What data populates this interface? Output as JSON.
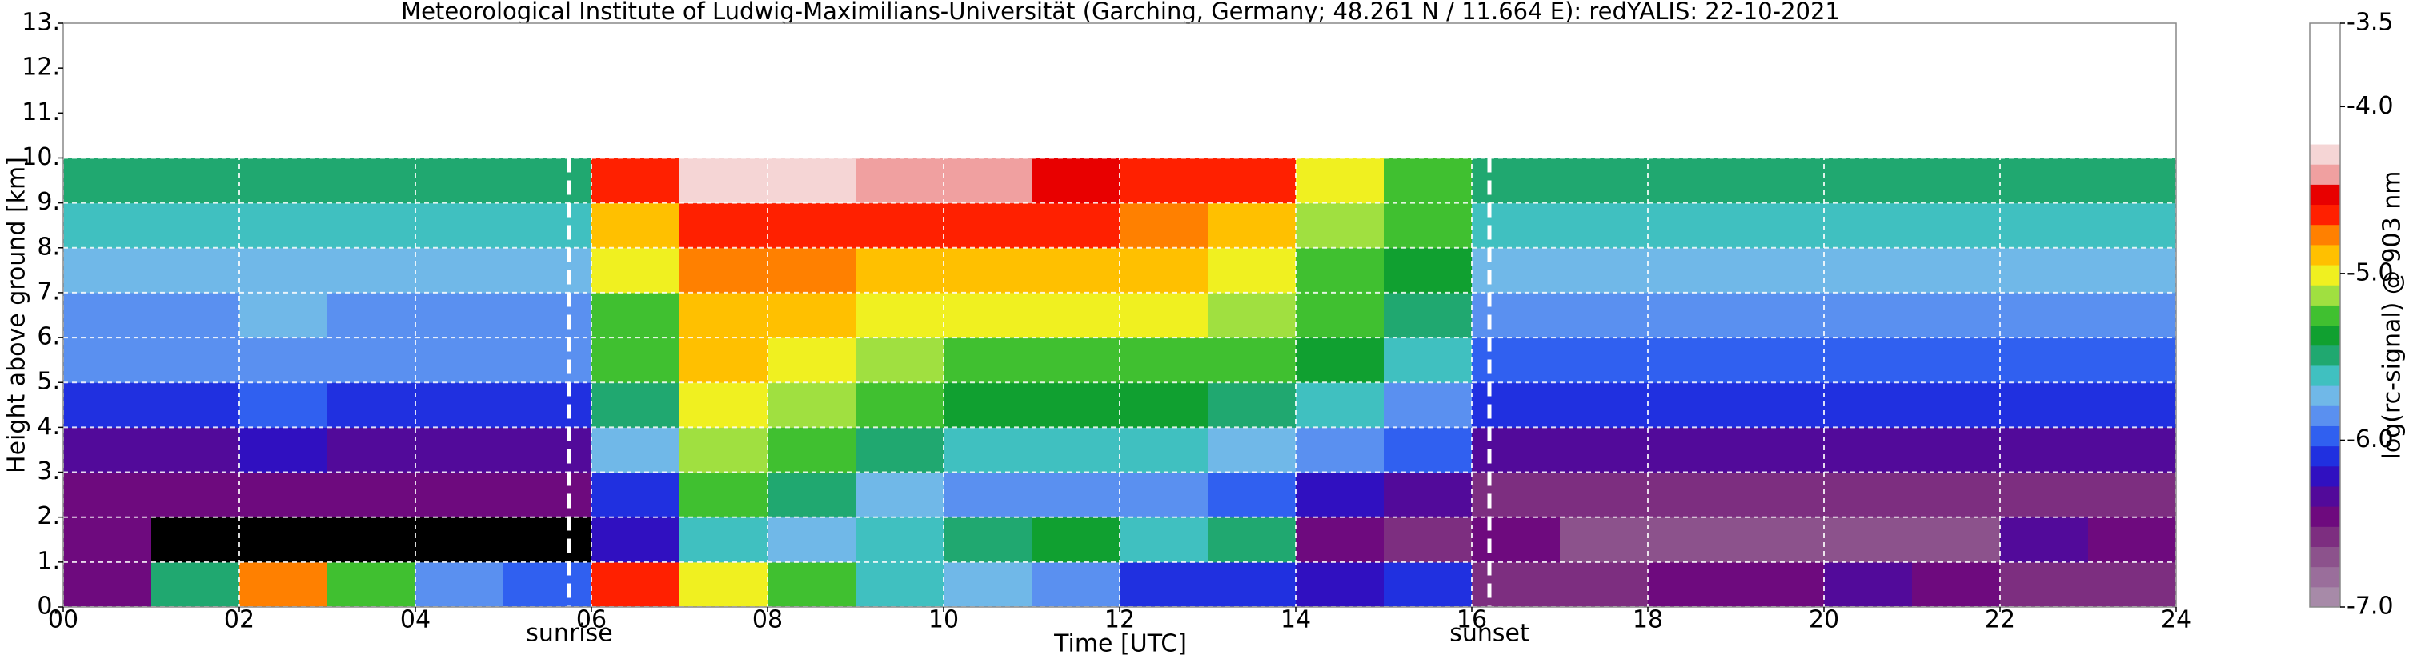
{
  "chart_data": {
    "type": "heatmap",
    "title": "Meteorological Institute of Ludwig-Maximilians-Universität (Garching, Germany; 48.261 N / 11.664 E):    redYALIS: 22-10-2021",
    "xlabel": "Time [UTC]",
    "ylabel": "Height above ground [km]",
    "colorbar_label": "log(rc-signal) @ 903 nm",
    "xlim": [
      0,
      24
    ],
    "ylim": [
      0,
      13
    ],
    "xticks": [
      {
        "value": 0,
        "label": "00"
      },
      {
        "value": 2,
        "label": "02"
      },
      {
        "value": 4,
        "label": "04"
      },
      {
        "value": 6,
        "label": "06"
      },
      {
        "value": 8,
        "label": "08"
      },
      10,
      12,
      14,
      16,
      18,
      20,
      22,
      24
    ],
    "yticks": [
      {
        "value": 0,
        "label": "0."
      },
      {
        "value": 1,
        "label": "1."
      },
      {
        "value": 2,
        "label": "2."
      },
      {
        "value": 3,
        "label": "3."
      },
      {
        "value": 4,
        "label": "4."
      },
      {
        "value": 5,
        "label": "5."
      },
      {
        "value": 6,
        "label": "6."
      },
      {
        "value": 7,
        "label": "7."
      },
      {
        "value": 8,
        "label": "8."
      },
      {
        "value": 9,
        "label": "9."
      },
      {
        "value": 10,
        "label": "10."
      },
      {
        "value": 11,
        "label": "11."
      },
      {
        "value": 12,
        "label": "12."
      },
      {
        "value": 13,
        "label": "13."
      }
    ],
    "grid": true,
    "zlim": [
      -7,
      -3.5
    ],
    "zticks": [
      -3.5,
      {
        "value": -4,
        "label": "-4.0"
      },
      {
        "value": -5,
        "label": "-5.0"
      },
      {
        "value": -6,
        "label": "-6.0"
      },
      {
        "value": -7,
        "label": "-7.0"
      }
    ],
    "colors": [
      "#a78aa8",
      "#9a6e9b",
      "#8c528c",
      "#7d2e80",
      "#6e0a7e",
      "#520a9a",
      "#3010c0",
      "#2030e0",
      "#3060f0",
      "#5a90f0",
      "#70b8e8",
      "#40c0c0",
      "#20a870",
      "#10a030",
      "#40c030",
      "#a0e040",
      "#f0f020",
      "#ffc000",
      "#ff8000",
      "#ff2000",
      "#e80000",
      "#f0a0a0",
      "#f5d5d5",
      "#ffffff",
      "#ffffff",
      "#ffffff",
      "#ffffff",
      "#ffffff",
      "#ffffff"
    ],
    "under_color": "#000000",
    "x": [
      0.5,
      1.5,
      2.5,
      3.5,
      4.5,
      5.5,
      6.5,
      7.5,
      8.5,
      9.5,
      10.5,
      11.5,
      12.5,
      13.5,
      14.5,
      15.5,
      16.5,
      17.5,
      18.5,
      19.5,
      20.5,
      21.5,
      22.5,
      23.5
    ],
    "y": [
      0.5,
      1.5,
      2.5,
      3.5,
      4.5,
      5.5,
      6.5,
      7.5,
      8.5,
      9.5
    ],
    "z": [
      [
        -6.4,
        -5.5,
        -4.8,
        -5.2,
        -5.8,
        -6.0,
        -4.6,
        -5.0,
        -5.2,
        -5.6,
        -5.7,
        -5.9,
        -6.1,
        -6.1,
        -6.2,
        -6.1,
        -6.6,
        -6.6,
        -6.5,
        -6.4,
        -6.3,
        -6.5,
        -6.6,
        -6.6
      ],
      [
        -6.5,
        -7.5,
        -7.5,
        -7.5,
        -7.5,
        -7.5,
        -6.2,
        -5.6,
        -5.7,
        -5.6,
        -5.5,
        -5.4,
        -5.6,
        -5.5,
        -6.5,
        -6.6,
        -6.5,
        -6.7,
        -6.7,
        -6.7,
        -6.7,
        -6.7,
        -6.3,
        -6.4
      ],
      [
        -6.5,
        -6.5,
        -6.5,
        -6.5,
        -6.5,
        -6.5,
        -6.1,
        -5.2,
        -5.5,
        -5.7,
        -5.8,
        -5.8,
        -5.9,
        -6.0,
        -6.2,
        -6.3,
        -6.6,
        -6.6,
        -6.6,
        -6.6,
        -6.6,
        -6.6,
        -6.6,
        -6.6
      ],
      [
        -6.3,
        -6.3,
        -6.2,
        -6.3,
        -6.3,
        -6.3,
        -5.7,
        -5.1,
        -5.3,
        -5.5,
        -5.6,
        -5.6,
        -5.6,
        -5.7,
        -5.9,
        -6.0,
        -6.3,
        -6.3,
        -6.3,
        -6.3,
        -6.3,
        -6.3,
        -6.3,
        -6.3
      ],
      [
        -6.1,
        -6.1,
        -6.0,
        -6.1,
        -6.1,
        -6.1,
        -5.5,
        -5.0,
        -5.1,
        -5.3,
        -5.4,
        -5.4,
        -5.4,
        -5.5,
        -5.6,
        -5.8,
        -6.1,
        -6.1,
        -6.1,
        -6.1,
        -6.1,
        -6.1,
        -6.1,
        -6.1
      ],
      [
        -5.9,
        -5.9,
        -5.8,
        -5.9,
        -5.9,
        -5.9,
        -5.3,
        -4.9,
        -5.0,
        -5.1,
        -5.2,
        -5.2,
        -5.2,
        -5.3,
        -5.4,
        -5.6,
        -6.0,
        -6.0,
        -6.0,
        -6.0,
        -6.0,
        -6.0,
        -6.0,
        -6.0
      ],
      [
        -5.8,
        -5.8,
        -5.7,
        -5.8,
        -5.8,
        -5.8,
        -5.2,
        -4.9,
        -4.9,
        -5.0,
        -5.0,
        -5.0,
        -5.0,
        -5.1,
        -5.3,
        -5.5,
        -5.8,
        -5.8,
        -5.8,
        -5.8,
        -5.8,
        -5.8,
        -5.8,
        -5.8
      ],
      [
        -5.7,
        -5.7,
        -5.7,
        -5.7,
        -5.7,
        -5.7,
        -5.0,
        -4.8,
        -4.8,
        -4.9,
        -4.9,
        -4.9,
        -4.9,
        -5.0,
        -5.2,
        -5.4,
        -5.7,
        -5.7,
        -5.7,
        -5.7,
        -5.7,
        -5.7,
        -5.7,
        -5.7
      ],
      [
        -5.6,
        -5.6,
        -5.6,
        -5.6,
        -5.6,
        -5.6,
        -4.9,
        -4.6,
        -4.6,
        -4.7,
        -4.7,
        -4.7,
        -4.8,
        -4.9,
        -5.1,
        -5.3,
        -5.6,
        -5.6,
        -5.6,
        -5.6,
        -5.6,
        -5.6,
        -5.6,
        -5.6
      ],
      [
        -5.5,
        -5.5,
        -5.5,
        -5.5,
        -5.5,
        -5.5,
        -4.6,
        -4.3,
        -4.3,
        -4.4,
        -4.4,
        -4.5,
        -4.6,
        -4.7,
        -5.0,
        -5.2,
        -5.5,
        -5.5,
        -5.5,
        -5.5,
        -5.5,
        -5.5,
        -5.5,
        -5.5
      ]
    ],
    "annotations": [
      {
        "text": "sunrise",
        "x": 5.75
      },
      {
        "text": "sunset",
        "x": 16.2
      }
    ]
  }
}
